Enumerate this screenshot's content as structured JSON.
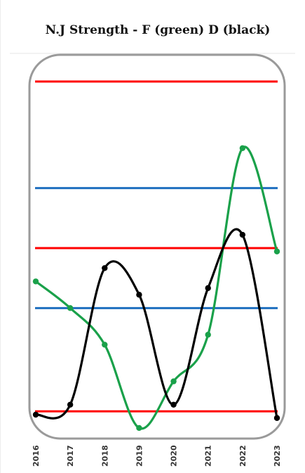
{
  "chart_data": {
    "type": "line",
    "title": "N.J Strength - F (green) D (black)",
    "x": [
      "2016",
      "2017",
      "2018",
      "2019",
      "2020",
      "2021",
      "2022",
      "2023"
    ],
    "ylim": [
      0,
      100
    ],
    "series": [
      {
        "values": [
          40,
          32,
          21,
          -4,
          10,
          24,
          80,
          49
        ],
        "color": "#1aa14a",
        "smooth": true
      },
      {
        "values": [
          0,
          3,
          44,
          36,
          3,
          38,
          54,
          -1
        ],
        "color": "#000000",
        "smooth": true
      }
    ],
    "reference_lines": [
      {
        "value": 100,
        "color": "#ff0000"
      },
      {
        "value": 68,
        "color": "#1f6fbf"
      },
      {
        "value": 50,
        "color": "#ff0000"
      },
      {
        "value": 32,
        "color": "#1f6fbf"
      },
      {
        "value": 1,
        "color": "#ff0000"
      }
    ],
    "grid": false,
    "legend": "none"
  }
}
